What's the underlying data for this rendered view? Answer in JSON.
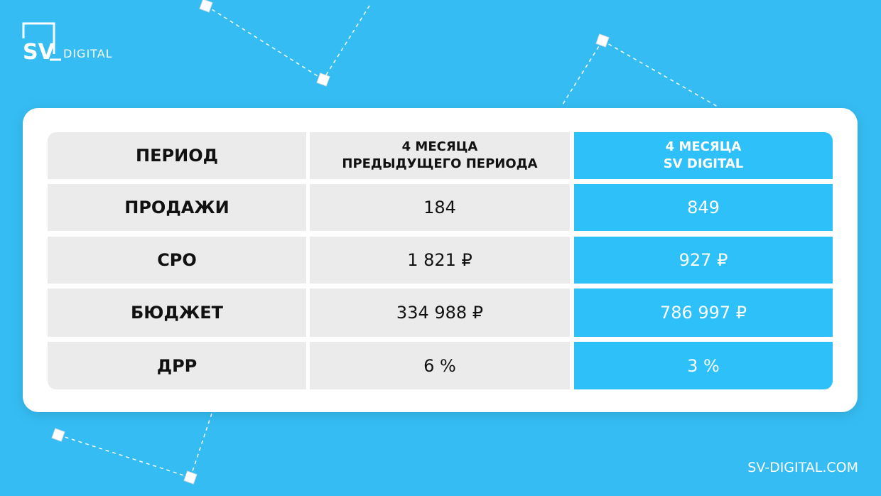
{
  "logo": {
    "mark": "SV",
    "text": "DIGITAL"
  },
  "table": {
    "header": [
      [
        "ПЕРИОД"
      ],
      [
        "4 МЕСЯЦА",
        "ПРЕДЫДУЩЕГО ПЕРИОДА"
      ],
      [
        "4 МЕСЯЦА",
        "SV DIGITAL"
      ]
    ],
    "rows": [
      [
        "ПРОДАЖИ",
        "184",
        "849"
      ],
      [
        "CPO",
        "1 821 ₽",
        "927 ₽"
      ],
      [
        "БЮДЖЕТ",
        "334 988 ₽",
        "786 997 ₽"
      ],
      [
        "ДРР",
        "6 %",
        "3 %"
      ]
    ]
  },
  "footer": "SV-DIGITAL.COM"
}
